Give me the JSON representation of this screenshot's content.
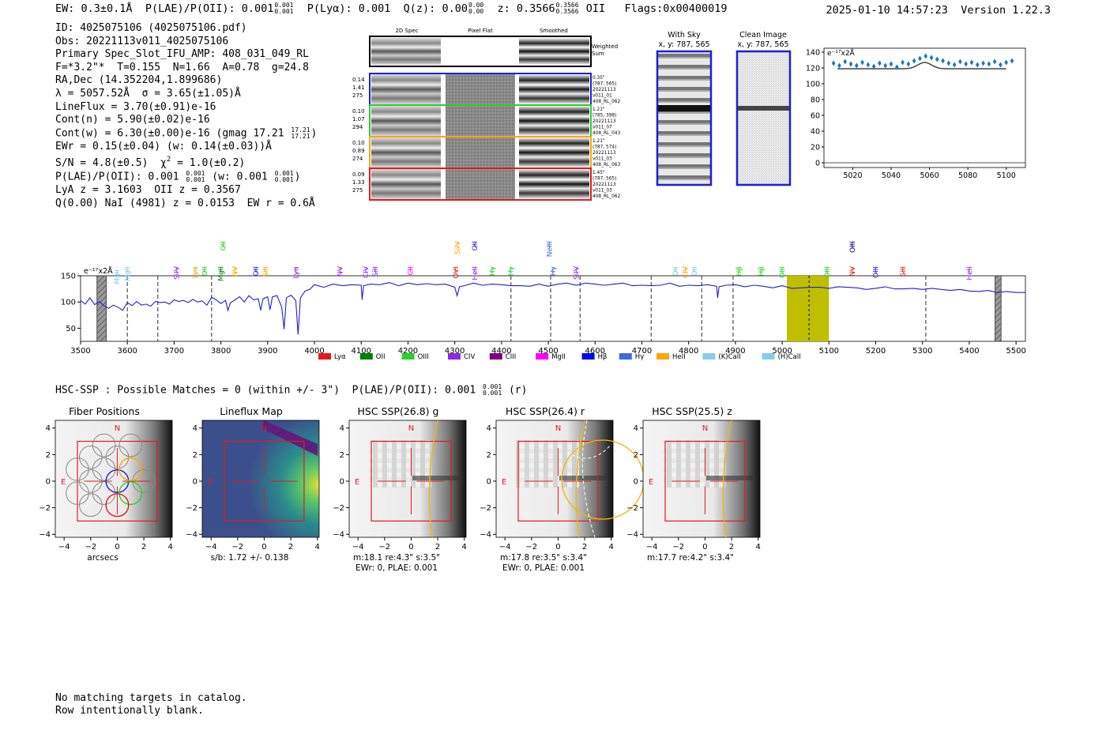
{
  "header": {
    "ew_label": "EW: 0.3±0.1Å",
    "plae_label": "P(LAE)/P(OII): 0.001",
    "plae_hi": "0.001",
    "plae_lo": "0.001",
    "plya": "P(Lyα): 0.001",
    "qz_label": "Q(z): 0.00",
    "qz_hi": "0.00",
    "qz_lo": "0.00",
    "z_label": "z: 0.3566",
    "z_hi": "0.3566",
    "z_lo": "0.3566",
    "z_line": "OII",
    "flags": "Flags:0x00400019",
    "datetime": "2025-01-10 14:57:23",
    "version": "Version 1.22.3"
  },
  "info": {
    "id": "ID: 4025075106 (4025075106.pdf)",
    "obs": "Obs: 20221113v011_4025075106",
    "primary": "Primary Spec_Slot_IFU_AMP: 408_031_049_RL",
    "fparams": "F=*3.2\"*  T=0.155  N=1.66  A=0.78  g=24.8",
    "radec": "RA,Dec (14.352204,1.899686)",
    "lambda": "λ = 5057.52Å  σ = 3.65(±1.05)Å",
    "lineflux": "LineFlux = 3.70(±0.91)e-16",
    "contn": "Cont(n) = 5.90(±0.02)e-16",
    "contw": "Cont(w) = 6.30(±0.00)e-16 (gmag 17.21",
    "contw_hi": "17.21",
    "contw_lo": "17.21",
    "ewr": "EWr = 0.15(±0.04) (w: 0.14(±0.03))Å",
    "sn": "S/N = 4.8(±0.5)  χ",
    "sn_tail": " = 1.0(±0.2)",
    "sn_exp": "2",
    "plae": "P(LAE)/P(OII): 0.001",
    "plae_w": "(w: 0.001",
    "lya": "LyA z = 3.1603  OII z = 0.3567",
    "q": "Q(0.00) NaI (4981) z = 0.0153  EW r = 0.6Å"
  },
  "cutouts": {
    "col_titles": [
      "2D Spec",
      "Pixel Flat",
      "Smoothed"
    ],
    "weighted_sum": [
      "Weighted",
      "Sum"
    ],
    "rows": [
      {
        "left": [
          "0.14",
          "1.41",
          "275"
        ],
        "right": [
          "0.35\"",
          "(787, 565)",
          "20221113",
          "v011_01",
          "408_RL_062"
        ],
        "color": "#1f1fd6"
      },
      {
        "left": [
          "0.10",
          "1.07",
          "294"
        ],
        "right": [
          "1.21\"",
          "(785, 398)",
          "20221113",
          "v011_07",
          "408_RL_043"
        ],
        "color": "#2bd12b"
      },
      {
        "left": [
          "0.10",
          "0.89",
          "274"
        ],
        "right": [
          "1.21\"",
          "(787, 574)",
          "20221113",
          "v011_03",
          "408_RL_063"
        ],
        "color": "#ffa500"
      },
      {
        "left": [
          "0.09",
          "1.33",
          "275"
        ],
        "right": [
          "1.45\"",
          "(787, 565)",
          "20221113",
          "v011_03",
          "408_RL_062"
        ],
        "color": "#e31a1c"
      }
    ],
    "with_sky": "With Sky",
    "with_sky_xy": "x, y: 787, 565",
    "clean": "Clean Image",
    "clean_xy": "x, y: 787, 565"
  },
  "mini_spectrum": {
    "unit": "e⁻¹⁷x2Å",
    "x_ticks": [
      5020,
      5040,
      5060,
      5080,
      5100
    ],
    "y_ticks": [
      0,
      20,
      40,
      60,
      80,
      100,
      120,
      140
    ],
    "xlim": [
      5005,
      5110
    ],
    "ylim": [
      -6,
      145
    ]
  },
  "chart_data": {
    "type": "line",
    "title": "",
    "unit_label": "e⁻¹⁷x2Å",
    "xlim": [
      3500,
      5520
    ],
    "ylim": [
      25,
      150
    ],
    "x_ticks": [
      3500,
      3600,
      3700,
      3800,
      3900,
      4000,
      4100,
      4200,
      4300,
      4400,
      4500,
      4600,
      4700,
      4800,
      4900,
      5000,
      5100,
      5200,
      5300,
      5400,
      5500
    ],
    "y_ticks": [
      50,
      100,
      150
    ],
    "spectrum_points": [
      [
        3500,
        103
      ],
      [
        3510,
        96
      ],
      [
        3520,
        108
      ],
      [
        3530,
        95
      ],
      [
        3540,
        101
      ],
      [
        3550,
        93
      ],
      [
        3560,
        88
      ],
      [
        3570,
        94
      ],
      [
        3580,
        90
      ],
      [
        3590,
        84
      ],
      [
        3600,
        99
      ],
      [
        3610,
        93
      ],
      [
        3620,
        101
      ],
      [
        3630,
        94
      ],
      [
        3640,
        96
      ],
      [
        3650,
        92
      ],
      [
        3660,
        101
      ],
      [
        3670,
        99
      ],
      [
        3680,
        100
      ],
      [
        3690,
        96
      ],
      [
        3700,
        104
      ],
      [
        3710,
        101
      ],
      [
        3720,
        103
      ],
      [
        3730,
        99
      ],
      [
        3740,
        105
      ],
      [
        3750,
        100
      ],
      [
        3760,
        102
      ],
      [
        3770,
        94
      ],
      [
        3780,
        109
      ],
      [
        3790,
        104
      ],
      [
        3800,
        97
      ],
      [
        3810,
        103
      ],
      [
        3815,
        84
      ],
      [
        3820,
        98
      ],
      [
        3830,
        104
      ],
      [
        3840,
        110
      ],
      [
        3850,
        100
      ],
      [
        3860,
        112
      ],
      [
        3870,
        104
      ],
      [
        3880,
        106
      ],
      [
        3885,
        84
      ],
      [
        3890,
        106
      ],
      [
        3900,
        110
      ],
      [
        3905,
        85
      ],
      [
        3910,
        110
      ],
      [
        3920,
        112
      ],
      [
        3930,
        90
      ],
      [
        3935,
        48
      ],
      [
        3940,
        108
      ],
      [
        3950,
        113
      ],
      [
        3960,
        103
      ],
      [
        3965,
        38
      ],
      [
        3970,
        108
      ],
      [
        3980,
        121
      ],
      [
        3990,
        124
      ],
      [
        4000,
        133
      ],
      [
        4020,
        128
      ],
      [
        4040,
        134
      ],
      [
        4060,
        131
      ],
      [
        4080,
        133
      ],
      [
        4100,
        132
      ],
      [
        4102,
        104
      ],
      [
        4105,
        131
      ],
      [
        4120,
        134
      ],
      [
        4140,
        133
      ],
      [
        4160,
        137
      ],
      [
        4180,
        131
      ],
      [
        4200,
        136
      ],
      [
        4220,
        133
      ],
      [
        4240,
        135
      ],
      [
        4260,
        133
      ],
      [
        4280,
        134
      ],
      [
        4300,
        128
      ],
      [
        4305,
        112
      ],
      [
        4310,
        129
      ],
      [
        4320,
        131
      ],
      [
        4340,
        136
      ],
      [
        4360,
        132
      ],
      [
        4380,
        134
      ],
      [
        4400,
        133
      ],
      [
        4420,
        131
      ],
      [
        4440,
        131
      ],
      [
        4460,
        130
      ],
      [
        4480,
        134
      ],
      [
        4500,
        130
      ],
      [
        4520,
        134
      ],
      [
        4540,
        136
      ],
      [
        4560,
        132
      ],
      [
        4580,
        136
      ],
      [
        4600,
        134
      ],
      [
        4620,
        132
      ],
      [
        4640,
        134
      ],
      [
        4660,
        136
      ],
      [
        4680,
        131
      ],
      [
        4700,
        132
      ],
      [
        4720,
        131
      ],
      [
        4740,
        132
      ],
      [
        4760,
        136
      ],
      [
        4780,
        130
      ],
      [
        4800,
        132
      ],
      [
        4820,
        131
      ],
      [
        4840,
        133
      ],
      [
        4860,
        130
      ],
      [
        4862,
        108
      ],
      [
        4865,
        129
      ],
      [
        4880,
        132
      ],
      [
        4900,
        133
      ],
      [
        4920,
        129
      ],
      [
        4940,
        132
      ],
      [
        4960,
        130
      ],
      [
        4980,
        127
      ],
      [
        5000,
        131
      ],
      [
        5020,
        126
      ],
      [
        5040,
        127
      ],
      [
        5060,
        128
      ],
      [
        5080,
        128
      ],
      [
        5100,
        126
      ],
      [
        5120,
        129
      ],
      [
        5140,
        128
      ],
      [
        5160,
        127
      ],
      [
        5180,
        124
      ],
      [
        5200,
        126
      ],
      [
        5220,
        129
      ],
      [
        5240,
        125
      ],
      [
        5260,
        125
      ],
      [
        5280,
        126
      ],
      [
        5300,
        124
      ],
      [
        5320,
        126
      ],
      [
        5340,
        124
      ],
      [
        5360,
        122
      ],
      [
        5380,
        124
      ],
      [
        5400,
        121
      ],
      [
        5420,
        120
      ],
      [
        5440,
        122
      ],
      [
        5460,
        118
      ],
      [
        5480,
        120
      ],
      [
        5500,
        118
      ],
      [
        5520,
        118
      ]
    ],
    "dashed_lines": [
      3600,
      3665,
      3780,
      4420,
      4505,
      4568,
      4720,
      4828,
      4895,
      5307
    ],
    "highlight": {
      "x0": 5010,
      "x1": 5100,
      "color": "#bfbf00",
      "center": 5057.5
    },
    "hatched": [
      [
        3535,
        3555
      ],
      [
        5455,
        5468
      ]
    ],
    "line_labels": [
      {
        "name": "MgII",
        "x": 3578,
        "color": "#87ceeb",
        "tier": 1
      },
      {
        "name": "MgII",
        "x": 3600,
        "color": "#87ceeb",
        "tier": 0
      },
      {
        "name": "SiIV",
        "x": 3705,
        "color": "#8a2be2",
        "tier": 0
      },
      {
        "name": "Lyα",
        "x": 3745,
        "color": "#ffa500",
        "tier": 0
      },
      {
        "name": "OII",
        "x": 3765,
        "color": "#2bd12b",
        "tier": 0
      },
      {
        "name": "MgII",
        "x": 3800,
        "color": "#008000",
        "tier": 0
      },
      {
        "name": "OII",
        "x": 3805,
        "color": "#2bd12b",
        "tier": 2
      },
      {
        "name": "NV",
        "x": 3830,
        "color": "#ffa500",
        "tier": 0
      },
      {
        "name": "OII",
        "x": 3875,
        "color": "#1f1fd6",
        "tier": 0
      },
      {
        "name": "SiII",
        "x": 3895,
        "color": "#ffa500",
        "tier": 0
      },
      {
        "name": "Lyα",
        "x": 3960,
        "color": "#8a2be2",
        "tier": 0
      },
      {
        "name": "NV",
        "x": 4055,
        "color": "#8a2be2",
        "tier": 0
      },
      {
        "name": "CIV",
        "x": 4110,
        "color": "#8a2be2",
        "tier": 0
      },
      {
        "name": "SiII",
        "x": 4130,
        "color": "#8a2be2",
        "tier": 0
      },
      {
        "name": "CII",
        "x": 4205,
        "color": "#ff00ff",
        "tier": 0
      },
      {
        "name": "OVI",
        "x": 4302,
        "color": "#e31a1c",
        "tier": 0
      },
      {
        "name": "SiIV",
        "x": 4306,
        "color": "#ffa500",
        "tier": 2
      },
      {
        "name": "OII",
        "x": 4343,
        "color": "#1f1fd6",
        "tier": 2
      },
      {
        "name": "HeII",
        "x": 4343,
        "color": "#8a2be2",
        "tier": 0
      },
      {
        "name": "Hγ",
        "x": 4380,
        "color": "#2bd12b",
        "tier": 0
      },
      {
        "name": "Hγ",
        "x": 4420,
        "color": "#2bd12b",
        "tier": 0
      },
      {
        "name": "NeIII",
        "x": 4502,
        "color": "#4169e1",
        "tier": 2
      },
      {
        "name": "Hγ",
        "x": 4510,
        "color": "#4169e1",
        "tier": 0
      },
      {
        "name": "SiIV",
        "x": 4560,
        "color": "#8a2be2",
        "tier": 0
      },
      {
        "name": "OII",
        "x": 4772,
        "color": "#87ceeb",
        "tier": 0
      },
      {
        "name": "CIV",
        "x": 4793,
        "color": "#ffa500",
        "tier": 0
      },
      {
        "name": "OII",
        "x": 4812,
        "color": "#87ceeb",
        "tier": 0
      },
      {
        "name": "Hβ",
        "x": 4908,
        "color": "#2bd12b",
        "tier": 0
      },
      {
        "name": "Hβ",
        "x": 4955,
        "color": "#2bd12b",
        "tier": 0
      },
      {
        "name": "OIII",
        "x": 5000,
        "color": "#2bd12b",
        "tier": 0
      },
      {
        "name": "OIII",
        "x": 5096,
        "color": "#2bd12b",
        "tier": 0
      },
      {
        "name": "NV",
        "x": 5150,
        "color": "#e31a1c",
        "tier": 0
      },
      {
        "name": "OIII",
        "x": 5150,
        "color": "#00008b",
        "tier": 2
      },
      {
        "name": "OIII",
        "x": 5200,
        "color": "#1f1fd6",
        "tier": 0
      },
      {
        "name": "SiII",
        "x": 5258,
        "color": "#e31a1c",
        "tier": 0
      },
      {
        "name": "HeII",
        "x": 5400,
        "color": "#8a2be2",
        "tier": 0
      }
    ],
    "legend": [
      {
        "label": "Lyα",
        "color": "#e31a1c"
      },
      {
        "label": "OII",
        "color": "#008000"
      },
      {
        "label": "OIII",
        "color": "#2bd12b"
      },
      {
        "label": "CIV",
        "color": "#8a2be2"
      },
      {
        "label": "CIII",
        "color": "#800080"
      },
      {
        "label": "MgII",
        "color": "#ff00ff"
      },
      {
        "label": "Hβ",
        "color": "#0000ff"
      },
      {
        "label": "Hγ",
        "color": "#4169e1"
      },
      {
        "label": "HeII",
        "color": "#ffa500"
      },
      {
        "label": "(K)CaII",
        "color": "#87ceeb"
      },
      {
        "label": "(H)CaII",
        "color": "#87ceeb"
      }
    ],
    "mini_points": [
      [
        5010,
        126
      ],
      [
        5013,
        123
      ],
      [
        5016,
        128
      ],
      [
        5019,
        125
      ],
      [
        5022,
        123
      ],
      [
        5025,
        127
      ],
      [
        5028,
        124
      ],
      [
        5031,
        122
      ],
      [
        5034,
        126
      ],
      [
        5037,
        123
      ],
      [
        5040,
        125
      ],
      [
        5043,
        121
      ],
      [
        5046,
        127
      ],
      [
        5049,
        125
      ],
      [
        5052,
        129
      ],
      [
        5055,
        132
      ],
      [
        5058,
        135
      ],
      [
        5061,
        133
      ],
      [
        5064,
        131
      ],
      [
        5067,
        129
      ],
      [
        5070,
        126
      ],
      [
        5073,
        124
      ],
      [
        5076,
        128
      ],
      [
        5079,
        125
      ],
      [
        5082,
        127
      ],
      [
        5085,
        124
      ],
      [
        5088,
        126
      ],
      [
        5091,
        125
      ],
      [
        5094,
        128
      ],
      [
        5097,
        124
      ],
      [
        5100,
        127
      ],
      [
        5103,
        129
      ]
    ],
    "mini_model_peak": 8
  },
  "hsc_line": {
    "text": "HSC-SSP : Possible Matches = 0 (within +/- 3\")  P(LAE)/P(OII): 0.001",
    "hi": "0.001",
    "lo": "0.001",
    "band": "(r)"
  },
  "panels": [
    {
      "title": "Fiber Positions",
      "caption1": "arcsecs",
      "caption2": ""
    },
    {
      "title": "Lineflux Map",
      "caption1": "s/b: 1.72 +/- 0.138",
      "caption2": ""
    },
    {
      "title": "HSC SSP(26.8) g",
      "caption1": "m:18.1  re:4.3\"  s:3.5\"",
      "caption2": "EWr: 0, PLAE: 0.001"
    },
    {
      "title": "HSC SSP(26.4) r",
      "caption1": "m:17.8  re:3.5\"  s:3.4\"",
      "caption2": "EWr: 0, PLAE: 0.001"
    },
    {
      "title": "HSC SSP(25.5) z",
      "caption1": "m:17.7  re:4.2\"  s:3.4\"",
      "caption2": ""
    }
  ],
  "panel_axes": {
    "ticks": [
      "−4",
      "−2",
      "0",
      "2",
      "4"
    ],
    "n_label": "N",
    "e_label": "E"
  },
  "notes": {
    "line1": "No matching targets in catalog.",
    "line2": "Row intentionally blank."
  }
}
